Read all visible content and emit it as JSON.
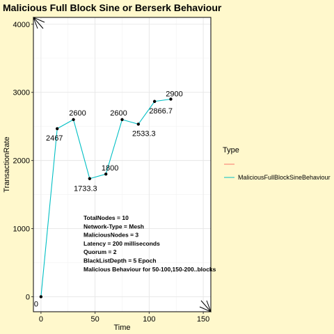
{
  "chart_data": {
    "type": "line",
    "title": "Malicious Full Block Sine or Berserk Behaviour",
    "xlabel": "Time",
    "ylabel": "TransactionRate",
    "xlim": [
      -7,
      157
    ],
    "ylim": [
      -220,
      4100
    ],
    "x_ticks": [
      0,
      50,
      100,
      150
    ],
    "y_ticks": [
      0,
      1000,
      2000,
      3000,
      4000
    ],
    "grid": true,
    "legend": {
      "title": "Type",
      "placement": "right",
      "entries": [
        {
          "name": "",
          "color": "#f8766d"
        },
        {
          "name": "MaliciousFullBlockSineBehaviour",
          "color": "#00bfc4"
        }
      ]
    },
    "series": [
      {
        "name": "MaliciousFullBlockSineBehaviour",
        "color": "#00bfc4",
        "points": [
          {
            "x": 0,
            "y": 0,
            "label": "0"
          },
          {
            "x": 15,
            "y": 2467,
            "label": "2467"
          },
          {
            "x": 30,
            "y": 2600,
            "label": "2600"
          },
          {
            "x": 45,
            "y": 1733.3,
            "label": "1733.3"
          },
          {
            "x": 60,
            "y": 1800,
            "label": "1800"
          },
          {
            "x": 75,
            "y": 2600,
            "label": "2600"
          },
          {
            "x": 90,
            "y": 2533.3,
            "label": "2533.3"
          },
          {
            "x": 105,
            "y": 2866.7,
            "label": "2866.7"
          },
          {
            "x": 120,
            "y": 2900,
            "label": "2900"
          }
        ]
      }
    ],
    "annotations": [
      "TotalNodes = 10",
      "Network-Type = Mesh",
      "MaliciousNodes = 3",
      "Latency = 200 milliseconds",
      "Quorum = 2",
      "BlackListDepth = 5 Epoch",
      "Malicious Behaviour for 50-100,150-200..blocks"
    ]
  }
}
